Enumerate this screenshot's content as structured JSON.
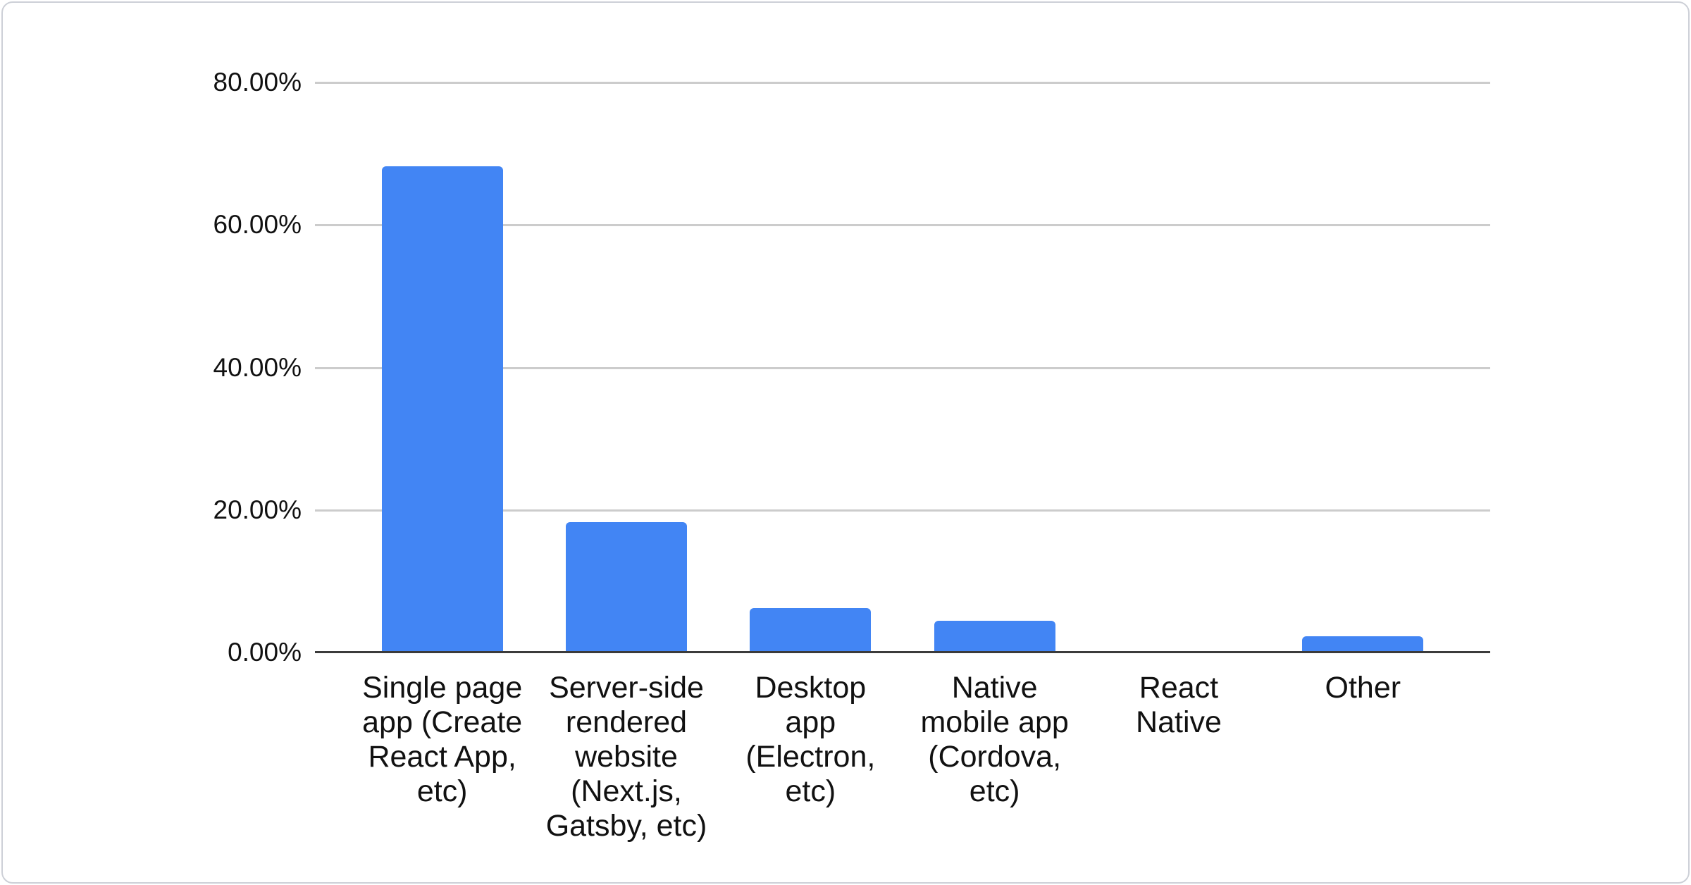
{
  "card": {
    "background": "#ffffff",
    "border_color": "#cdd0d7"
  },
  "chart_data": {
    "type": "bar",
    "title": "",
    "xlabel": "",
    "ylabel": "",
    "categories": [
      "Single page app (Create React App, etc)",
      "Server-side rendered website (Next.js, Gatsby, etc)",
      "Desktop app (Electron, etc)",
      "Native mobile app (Cordova, etc)",
      "React Native",
      "Other"
    ],
    "category_lines": [
      [
        "Single page",
        "app (Create",
        "React App,",
        "etc)"
      ],
      [
        "Server-side",
        "rendered",
        "website",
        "(Next.js,",
        "Gatsby, etc)"
      ],
      [
        "Desktop",
        "app",
        "(Electron,",
        "etc)"
      ],
      [
        "Native",
        "mobile app",
        "(Cordova,",
        "etc)"
      ],
      [
        "React",
        "Native"
      ],
      [
        "Other"
      ]
    ],
    "values": [
      68.2,
      18.3,
      6.2,
      4.5,
      0,
      2.3
    ],
    "unit": "%",
    "ylim": [
      0,
      80
    ],
    "y_ticks": [
      {
        "value": 80,
        "label": "80.00%"
      },
      {
        "value": 60,
        "label": "60.00%"
      },
      {
        "value": 40,
        "label": "40.00%"
      },
      {
        "value": 20,
        "label": "20.00%"
      },
      {
        "value": 0,
        "label": "0.00%"
      }
    ],
    "grid": true,
    "legend_position": "none",
    "bar_color": "#4285f4",
    "gridline_color": "#cccccc",
    "axis_line_color": "#3b3b3b",
    "tick_label_color": "#111111",
    "category_label_color": "#111111"
  }
}
